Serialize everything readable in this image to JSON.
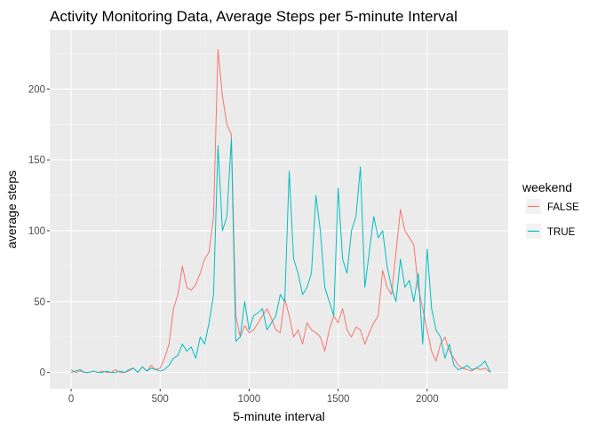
{
  "chart_data": {
    "type": "line",
    "title": "Activity Monitoring Data, Average Steps per 5-minute Interval",
    "xlabel": "5-minute interval",
    "ylabel": "average steps",
    "xlim": [
      -120,
      2455
    ],
    "ylim": [
      -11.5,
      241.5
    ],
    "xticks": [
      0,
      500,
      1000,
      1500,
      2000
    ],
    "yticks": [
      0,
      50,
      100,
      150,
      200
    ],
    "grid": true,
    "legend": {
      "title": "weekend",
      "position": "right",
      "entries": [
        {
          "label": "FALSE",
          "color": "#F8766D"
        },
        {
          "label": "TRUE",
          "color": "#00BFC4"
        }
      ]
    },
    "x": [
      0,
      25,
      50,
      75,
      100,
      125,
      150,
      175,
      200,
      225,
      250,
      275,
      300,
      325,
      350,
      375,
      400,
      425,
      450,
      475,
      500,
      525,
      550,
      575,
      600,
      625,
      650,
      675,
      700,
      725,
      750,
      775,
      800,
      825,
      850,
      875,
      900,
      925,
      950,
      975,
      1000,
      1025,
      1050,
      1075,
      1100,
      1125,
      1150,
      1175,
      1200,
      1225,
      1250,
      1275,
      1300,
      1325,
      1350,
      1375,
      1400,
      1425,
      1450,
      1475,
      1500,
      1525,
      1550,
      1575,
      1600,
      1625,
      1650,
      1675,
      1700,
      1725,
      1750,
      1775,
      1800,
      1825,
      1850,
      1875,
      1900,
      1925,
      1950,
      1975,
      2000,
      2025,
      2050,
      2075,
      2100,
      2125,
      2150,
      2175,
      2200,
      2225,
      2250,
      2275,
      2300,
      2325,
      2355
    ],
    "series": [
      {
        "name": "FALSE",
        "color": "#F8766D",
        "values": [
          2,
          0,
          1,
          0,
          0,
          1,
          0,
          1,
          0,
          0,
          2,
          0,
          0,
          1,
          3,
          0,
          4,
          1,
          5,
          2,
          3,
          10,
          20,
          45,
          55,
          75,
          60,
          58,
          62,
          70,
          80,
          85,
          110,
          228,
          195,
          175,
          168,
          40,
          25,
          33,
          28,
          30,
          35,
          40,
          45,
          38,
          30,
          28,
          52,
          40,
          25,
          30,
          20,
          35,
          30,
          28,
          25,
          15,
          30,
          40,
          35,
          45,
          30,
          25,
          32,
          30,
          20,
          28,
          35,
          40,
          72,
          60,
          55,
          85,
          115,
          100,
          95,
          90,
          60,
          45,
          30,
          15,
          8,
          20,
          25,
          15,
          10,
          5,
          3,
          2,
          1,
          3,
          2,
          3,
          0
        ]
      },
      {
        "name": "TRUE",
        "color": "#00BFC4",
        "values": [
          0,
          1,
          2,
          0,
          0,
          1,
          0,
          0,
          1,
          0,
          0,
          1,
          0,
          2,
          3,
          0,
          4,
          1,
          3,
          2,
          1,
          2,
          5,
          10,
          12,
          20,
          15,
          18,
          10,
          25,
          20,
          35,
          55,
          160,
          100,
          110,
          165,
          22,
          25,
          50,
          30,
          40,
          42,
          45,
          30,
          35,
          40,
          55,
          50,
          142,
          80,
          70,
          55,
          60,
          70,
          125,
          100,
          60,
          50,
          40,
          130,
          80,
          70,
          100,
          110,
          145,
          60,
          85,
          110,
          95,
          100,
          75,
          60,
          50,
          80,
          60,
          65,
          50,
          70,
          20,
          87,
          45,
          30,
          25,
          10,
          20,
          5,
          2,
          3,
          5,
          2,
          3,
          5,
          8,
          0
        ]
      }
    ]
  }
}
